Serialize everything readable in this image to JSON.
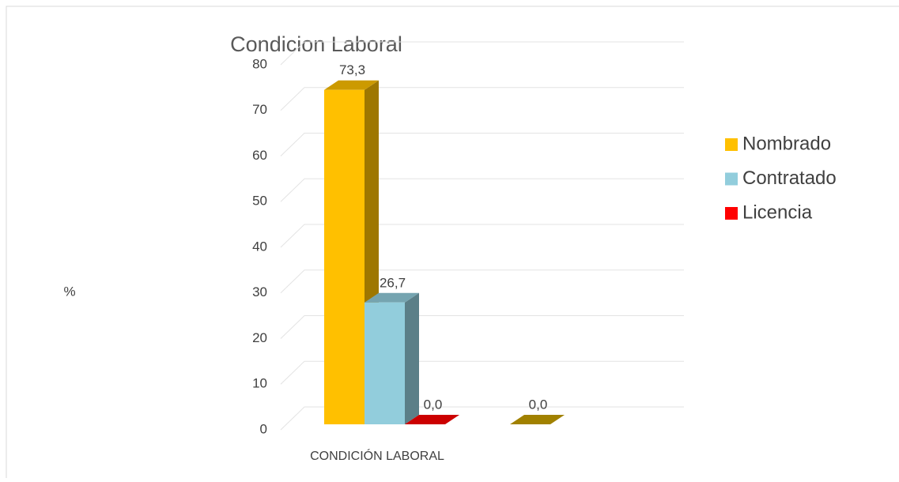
{
  "chart_data": {
    "type": "bar3d",
    "title": "Condicion Laboral",
    "y_label": "%",
    "x_label": "CONDICIÓN LABORAL",
    "ylim": [
      0,
      80
    ],
    "yticks": [
      0,
      10,
      20,
      30,
      40,
      50,
      60,
      70,
      80
    ],
    "grid": true,
    "legend": "right",
    "series": [
      {
        "name": "Nombrado",
        "color": "#ffc000",
        "values": [
          73.3
        ],
        "value_labels": [
          "73,3"
        ]
      },
      {
        "name": "Contratado",
        "color": "#92cddc",
        "values": [
          26.7
        ],
        "value_labels": [
          "26,7"
        ]
      },
      {
        "name": "Licencia",
        "color": "#ff0000",
        "values": [
          0.0
        ],
        "value_labels": [
          "0,0"
        ]
      },
      {
        "color": "#c9a100",
        "values": [
          0.0
        ],
        "value_labels": [
          "0,0"
        ]
      }
    ]
  }
}
